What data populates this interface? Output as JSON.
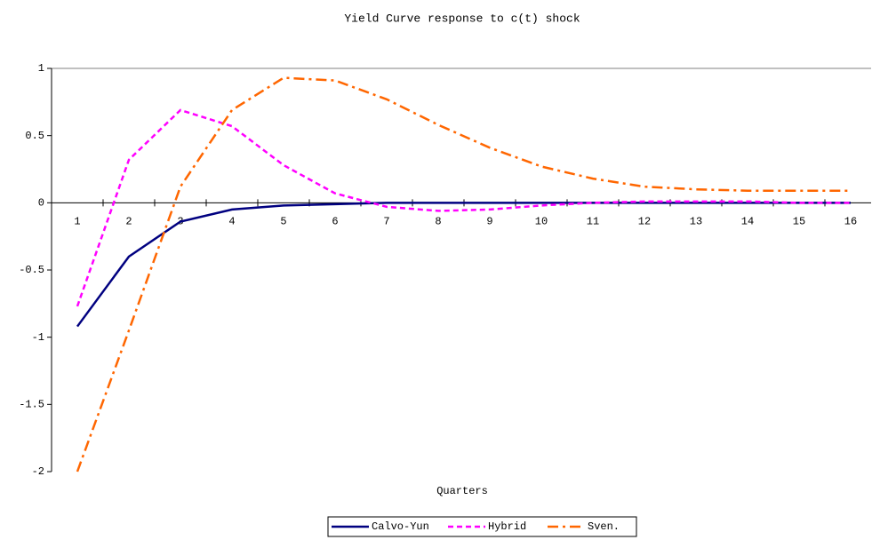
{
  "chart_data": {
    "type": "line",
    "title": "Yield Curve response to c(t) shock",
    "x_label": "Quarters",
    "categories": [
      "1",
      "2",
      "3",
      "4",
      "5",
      "6",
      "7",
      "8",
      "9",
      "10",
      "11",
      "12",
      "13",
      "14",
      "15",
      "16"
    ],
    "series": [
      {
        "name": "Calvo-Yun",
        "color": "#000080",
        "dash": "solid",
        "values": [
          -0.92,
          -0.4,
          -0.14,
          -0.05,
          -0.02,
          -0.01,
          0,
          0,
          0,
          0,
          0,
          0,
          0,
          0,
          0,
          0
        ]
      },
      {
        "name": "Hybrid",
        "color": "#ff00ff",
        "dash": "dashed",
        "values": [
          -0.77,
          0.32,
          0.69,
          0.57,
          0.28,
          0.07,
          -0.03,
          -0.06,
          -0.05,
          -0.02,
          0,
          0.01,
          0.01,
          0.01,
          0,
          0
        ]
      },
      {
        "name": "Sven.",
        "color": "#ff6600",
        "dash": "dashdot",
        "values": [
          -2.0,
          -0.95,
          0.12,
          0.69,
          0.93,
          0.91,
          0.77,
          0.58,
          0.41,
          0.27,
          0.18,
          0.12,
          0.1,
          0.09,
          0.09,
          0.09
        ]
      }
    ],
    "ylim": [
      -2,
      1
    ],
    "yticks": [
      1,
      0.5,
      0,
      -0.5,
      -1,
      -1.5,
      -2
    ],
    "legend": "bottom"
  }
}
